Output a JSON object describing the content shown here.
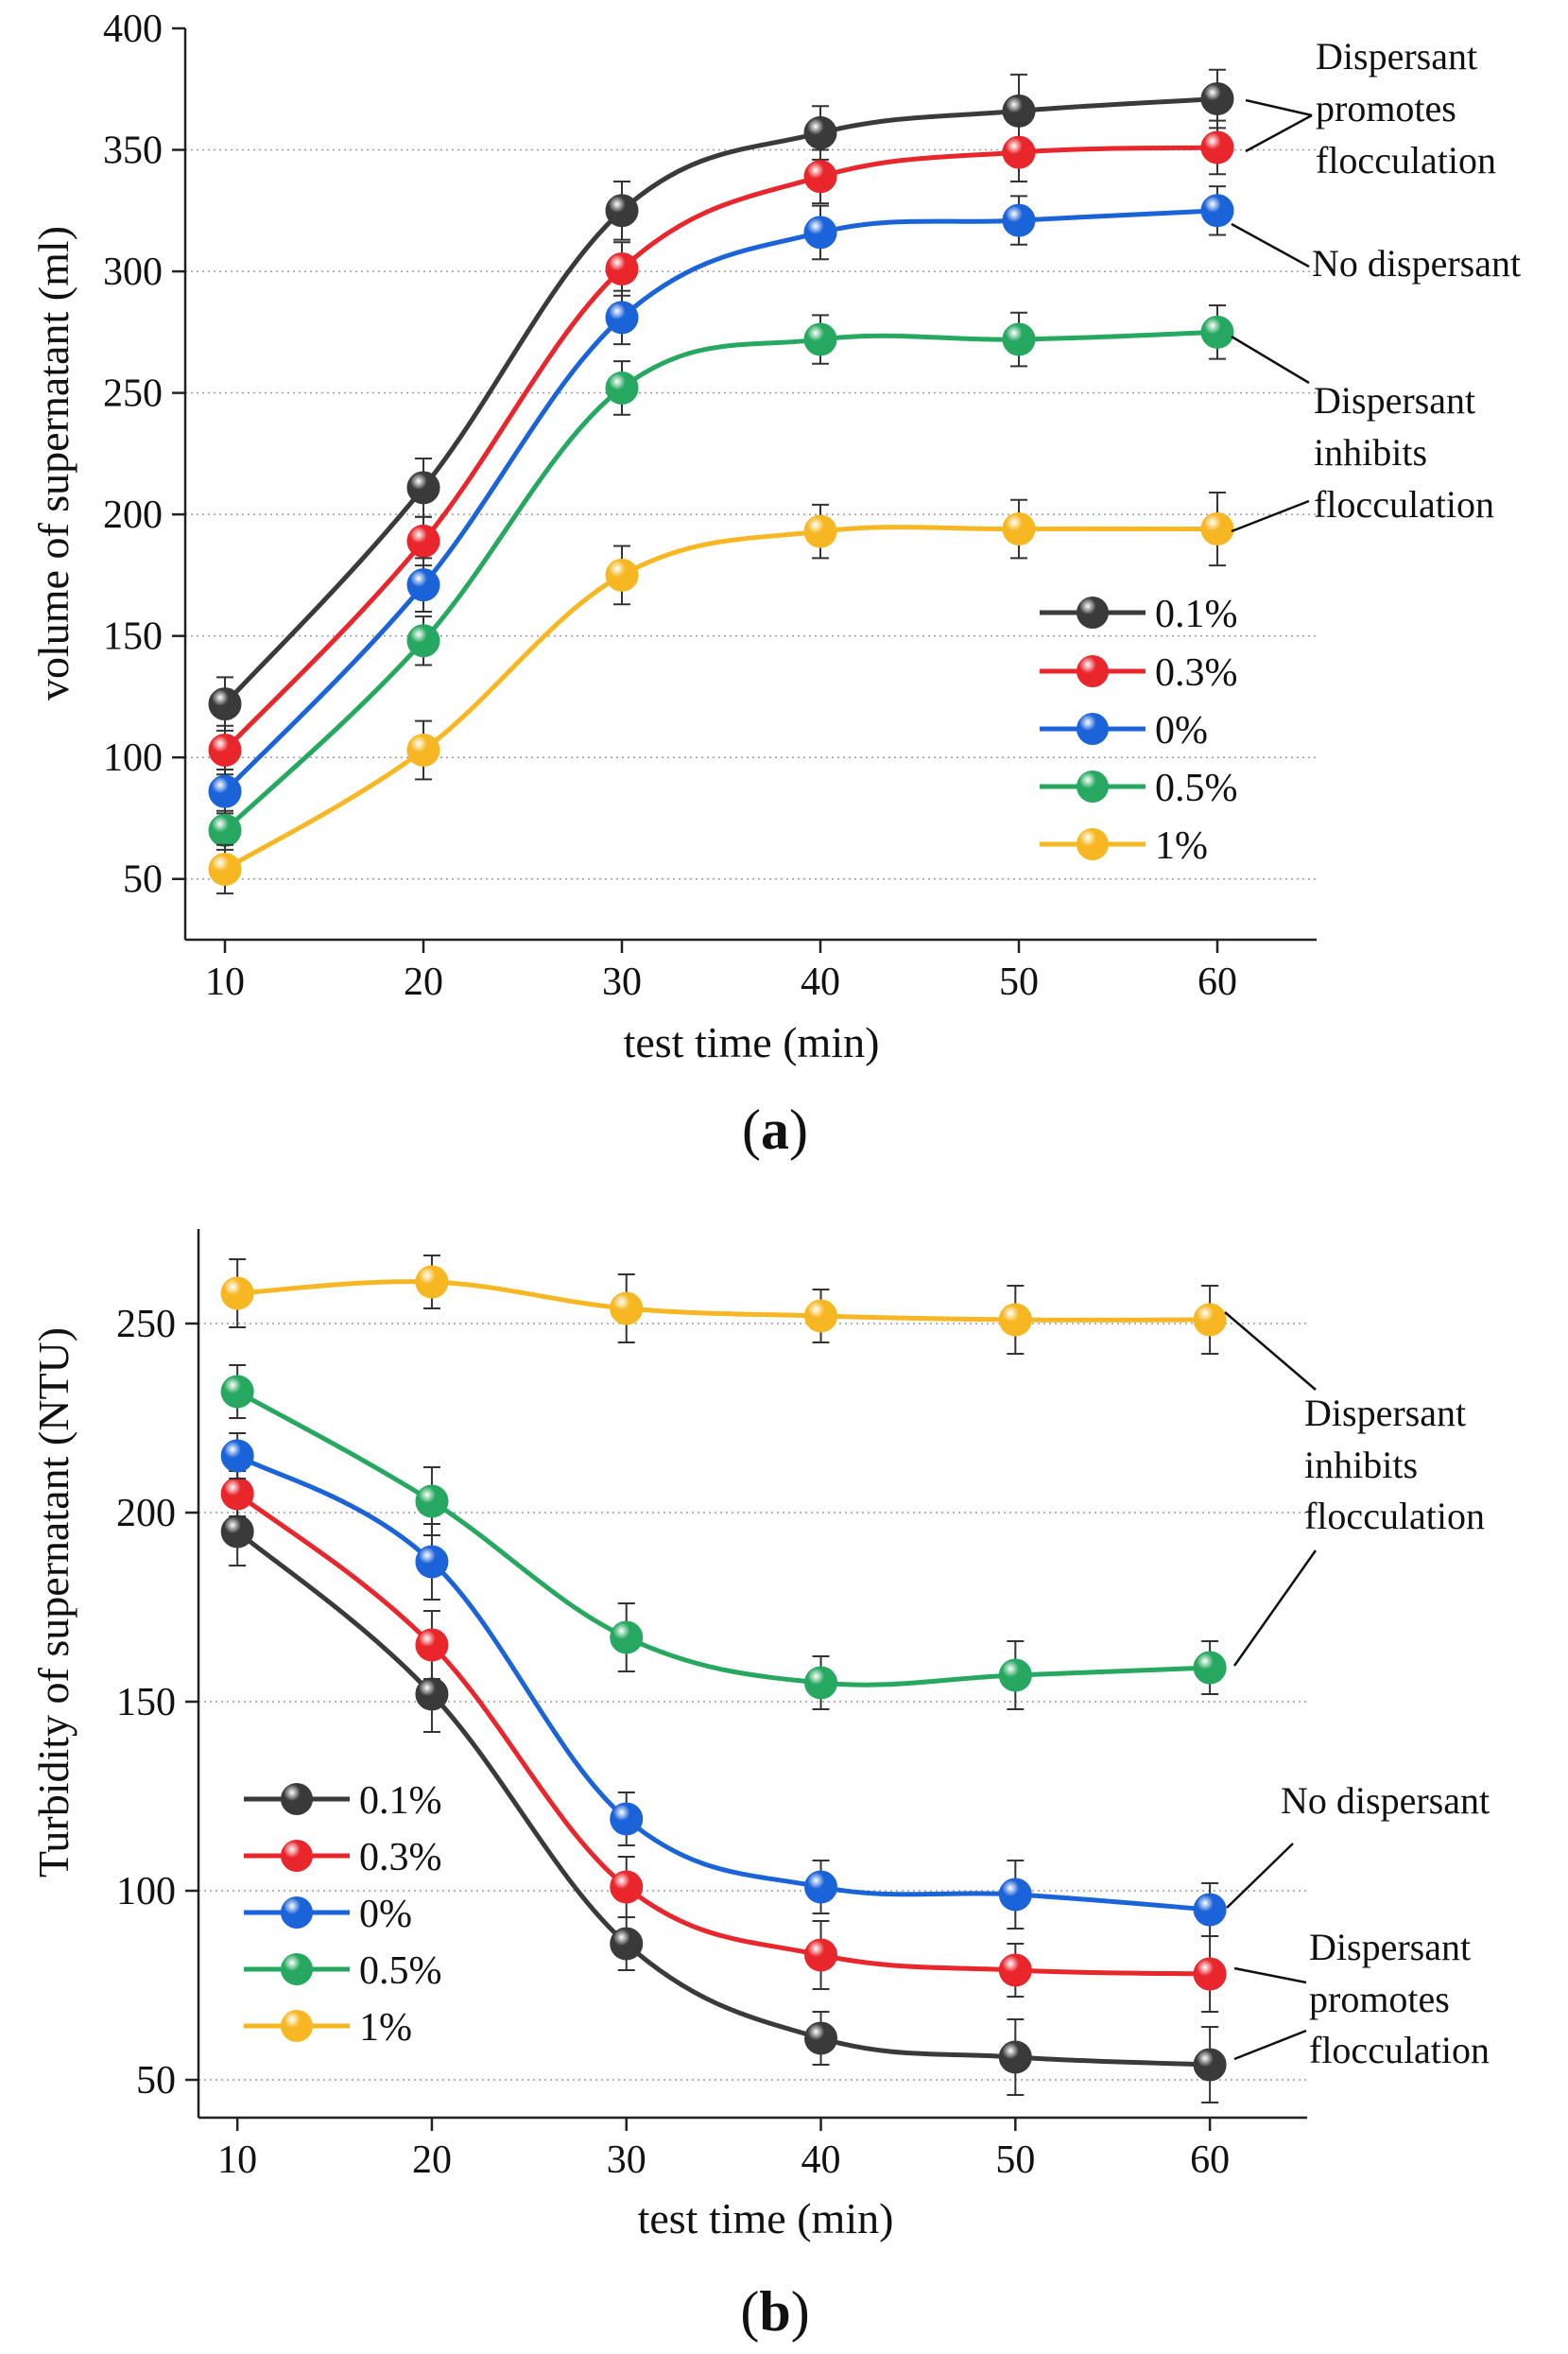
{
  "chart_data": [
    {
      "type": "line",
      "panel_label": "a",
      "xlabel": "test time (min)",
      "ylabel": "volume of supernatant (ml)",
      "x": [
        10,
        20,
        30,
        40,
        50,
        60
      ],
      "xlim": [
        8,
        65
      ],
      "ylim": [
        25,
        400
      ],
      "xticks": [
        10,
        20,
        30,
        40,
        50,
        60
      ],
      "yticks": [
        50,
        100,
        150,
        200,
        250,
        300,
        350,
        400
      ],
      "grid": "horizontal dotted",
      "legend_position": "center-right",
      "series": [
        {
          "name": "0.1%",
          "color": "#3a3a3a",
          "values": [
            122,
            211,
            325,
            357,
            366,
            371
          ],
          "errors": [
            11,
            12,
            12,
            11,
            15,
            12
          ]
        },
        {
          "name": "0.3%",
          "color": "#e8262b",
          "values": [
            103,
            189,
            301,
            339,
            349,
            351
          ],
          "errors": [
            10,
            10,
            11,
            11,
            12,
            11
          ]
        },
        {
          "name": "0%",
          "color": "#1b63d8",
          "values": [
            86,
            171,
            281,
            316,
            321,
            325
          ],
          "errors": [
            9,
            11,
            11,
            11,
            10,
            10
          ]
        },
        {
          "name": "0.5%",
          "color": "#27a860",
          "values": [
            70,
            148,
            252,
            272,
            272,
            275
          ],
          "errors": [
            8,
            10,
            11,
            10,
            11,
            11
          ]
        },
        {
          "name": "1%",
          "color": "#f7b722",
          "values": [
            54,
            103,
            175,
            193,
            194,
            194
          ],
          "errors": [
            10,
            12,
            12,
            11,
            12,
            15
          ]
        }
      ],
      "annotations": [
        {
          "lines": [
            "Dispersant",
            "promotes",
            "flocculation"
          ],
          "targets": [
            "0.1%",
            "0.3%"
          ]
        },
        {
          "lines": [
            "No dispersant"
          ],
          "targets": [
            "0%"
          ]
        },
        {
          "lines": [
            "Dispersant",
            "inhibits",
            "flocculation"
          ],
          "targets": [
            "0.5%",
            "1%"
          ]
        }
      ]
    },
    {
      "type": "line",
      "panel_label": "b",
      "xlabel": "test time (min)",
      "ylabel": "Turbidity of supernatant (NTU)",
      "x": [
        10,
        20,
        30,
        40,
        50,
        60
      ],
      "xlim": [
        8,
        65
      ],
      "ylim": [
        40,
        275
      ],
      "xticks": [
        10,
        20,
        30,
        40,
        50,
        60
      ],
      "yticks": [
        50,
        100,
        150,
        200,
        250
      ],
      "grid": "horizontal dotted",
      "legend_position": "bottom-left",
      "series": [
        {
          "name": "0.1%",
          "color": "#3a3a3a",
          "values": [
            195,
            152,
            86,
            61,
            56,
            54
          ],
          "errors": [
            9,
            10,
            7,
            7,
            10,
            10
          ]
        },
        {
          "name": "0.3%",
          "color": "#e8262b",
          "values": [
            205,
            165,
            101,
            83,
            79,
            78
          ],
          "errors": [
            6,
            9,
            8,
            9,
            7,
            10
          ]
        },
        {
          "name": "0%",
          "color": "#1b63d8",
          "values": [
            215,
            187,
            119,
            101,
            99,
            95
          ],
          "errors": [
            6,
            10,
            7,
            7,
            9,
            7
          ]
        },
        {
          "name": "0.5%",
          "color": "#27a860",
          "values": [
            232,
            203,
            167,
            155,
            157,
            159
          ],
          "errors": [
            7,
            9,
            9,
            7,
            9,
            7
          ]
        },
        {
          "name": "1%",
          "color": "#f7b722",
          "values": [
            258,
            261,
            254,
            252,
            251,
            251
          ],
          "errors": [
            9,
            7,
            9,
            7,
            9,
            9
          ]
        }
      ],
      "annotations": [
        {
          "lines": [
            "Dispersant",
            "inhibits",
            "flocculation"
          ],
          "targets": [
            "1%",
            "0.5%"
          ]
        },
        {
          "lines": [
            "No dispersant"
          ],
          "targets": [
            "0%"
          ]
        },
        {
          "lines": [
            "Dispersant",
            "promotes",
            "flocculation"
          ],
          "targets": [
            "0.3%",
            "0.1%"
          ]
        }
      ]
    }
  ]
}
